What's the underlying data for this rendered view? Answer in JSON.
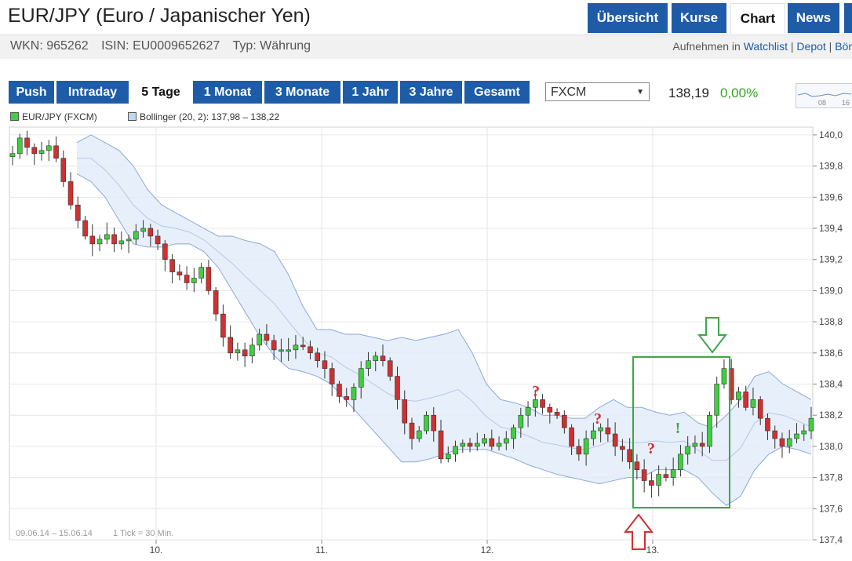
{
  "header": {
    "title": "EUR/JPY (Euro / Japanischer Yen)",
    "wkn": "WKN: 965262",
    "isin": "ISIN: EU0009652627",
    "typ": "Typ: Währung",
    "nav": [
      "Übersicht",
      "Kurse",
      "Chart",
      "News"
    ],
    "active_nav": "Chart",
    "watch_prefix": "Aufnehmen in",
    "watch_links": [
      "Watchlist",
      "Depot",
      "Bör"
    ]
  },
  "controls": {
    "ranges": [
      "Push",
      "Intraday",
      "5 Tage",
      "1 Monat",
      "3 Monate",
      "1 Jahr",
      "3 Jahre",
      "Gesamt"
    ],
    "active_range": "5 Tage",
    "exchange": "FXCM",
    "price": "138,19",
    "change": "0,00%",
    "mini_labels": [
      "08",
      "16"
    ]
  },
  "legend": {
    "series": "EUR/JPY (FXCM)",
    "bollinger": "Bollinger (20, 2): 137,98 – 138,22"
  },
  "colors": {
    "nav_blue": "#1e5ca8",
    "up": "#3fcf3f",
    "down": "#d03030",
    "band_fill": "#e3ecf9",
    "band_line": "#8aa9d6",
    "box": "#3aa84a",
    "arrow_down_green": "#3aa84a",
    "arrow_up_red": "#d03030"
  },
  "chart_data": {
    "type": "candlestick",
    "title": "",
    "period_label": "09.06.14 – 15.06.14",
    "tick_label": "1 Tick = 30 Min.",
    "ylim": [
      137.4,
      140.05
    ],
    "y_ticks": [
      "140,0",
      "139,8",
      "139,6",
      "139,4",
      "139,2",
      "139,0",
      "138,8",
      "138,6",
      "138,4",
      "138,2",
      "138,0",
      "137,8",
      "137,6",
      "137,4"
    ],
    "x_ticks": [
      "10.",
      "11.",
      "12.",
      "13."
    ],
    "series": [
      {
        "name": "EUR/JPY (FXCM)",
        "close_path": [
          139.88,
          139.98,
          139.92,
          139.88,
          139.9,
          139.93,
          139.85,
          139.7,
          139.55,
          139.45,
          139.35,
          139.3,
          139.33,
          139.36,
          139.3,
          139.32,
          139.33,
          139.38,
          139.4,
          139.35,
          139.3,
          139.2,
          139.12,
          139.1,
          139.05,
          139.08,
          139.15,
          139.0,
          138.85,
          138.7,
          138.6,
          138.62,
          138.58,
          138.65,
          138.72,
          138.68,
          138.62,
          138.62,
          138.62,
          138.65,
          138.64,
          138.6,
          138.55,
          138.5,
          138.4,
          138.32,
          138.3,
          138.38,
          138.5,
          138.55,
          138.58,
          138.55,
          138.45,
          138.3,
          138.15,
          138.05,
          138.1,
          138.2,
          138.1,
          137.92,
          137.95,
          138.0,
          138.02,
          138.0,
          138.02,
          138.05,
          138.0,
          138.02,
          138.05,
          138.12,
          138.2,
          138.25,
          138.3,
          138.25,
          138.22,
          138.2,
          138.12,
          138.0,
          137.95,
          138.05,
          138.1,
          138.12,
          138.08,
          138.0,
          137.98,
          137.9,
          137.85,
          137.78,
          137.75,
          137.82,
          137.8,
          137.85,
          137.95,
          138.0,
          138.02,
          138.0,
          138.2,
          138.4,
          138.5,
          138.3,
          138.35,
          138.25,
          138.3,
          138.18,
          138.1,
          138.05,
          138.0,
          138.05,
          138.08,
          138.1,
          138.18
        ]
      }
    ],
    "bollinger_upper": [
      139.95,
      140.0,
      139.95,
      139.9,
      139.8,
      139.65,
      139.55,
      139.5,
      139.45,
      139.4,
      139.35,
      139.35,
      139.32,
      139.3,
      139.25,
      139.1,
      138.9,
      138.75,
      138.75,
      138.72,
      138.72,
      138.7,
      138.68,
      138.7,
      138.68,
      138.7,
      138.72,
      138.75,
      138.6,
      138.4,
      138.3,
      138.28,
      138.25,
      138.2,
      138.2,
      138.18,
      138.18,
      138.25,
      138.3,
      138.25,
      138.25,
      138.22,
      138.2,
      138.22,
      138.15,
      138.12,
      138.2,
      138.3,
      138.45,
      138.48,
      138.4,
      138.35,
      138.3
    ],
    "bollinger_lower": [
      139.75,
      139.7,
      139.6,
      139.45,
      139.3,
      139.28,
      139.28,
      139.3,
      139.3,
      139.25,
      139.15,
      139.0,
      138.85,
      138.7,
      138.58,
      138.5,
      138.48,
      138.45,
      138.4,
      138.3,
      138.2,
      138.1,
      138.0,
      137.9,
      137.9,
      137.92,
      137.95,
      137.98,
      137.98,
      137.98,
      137.95,
      137.92,
      137.88,
      137.85,
      137.82,
      137.8,
      137.78,
      137.76,
      137.78,
      137.8,
      137.8,
      137.85,
      137.85,
      137.85,
      137.8,
      137.7,
      137.62,
      137.68,
      137.85,
      137.95,
      138.0,
      137.98,
      137.95
    ],
    "annotations": [
      {
        "type": "text",
        "text": "?",
        "color": "#d03030"
      },
      {
        "type": "text",
        "text": "?",
        "color": "#d03030"
      },
      {
        "type": "text",
        "text": "?",
        "color": "#d03030"
      },
      {
        "type": "text",
        "text": "!",
        "color": "#3aa84a"
      },
      {
        "type": "box",
        "color": "#3aa84a"
      },
      {
        "type": "arrow",
        "direction": "down",
        "color": "#3aa84a"
      },
      {
        "type": "arrow",
        "direction": "up",
        "color": "#d03030"
      }
    ]
  }
}
